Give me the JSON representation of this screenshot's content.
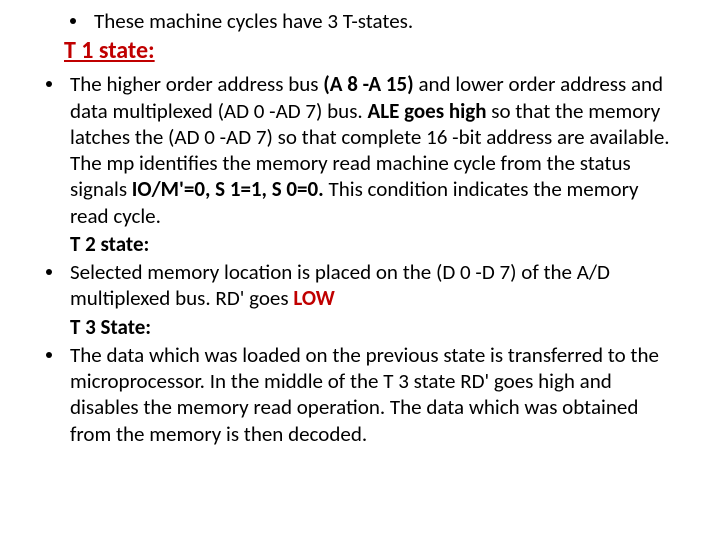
{
  "colors": {
    "text": "#000000",
    "accent": "#c00000",
    "background": "#ffffff"
  },
  "typography": {
    "body_fontsize": 21,
    "heading_fontsize": 24,
    "line_height": 1.25,
    "font_family": "Calibri"
  },
  "top_bullet": {
    "text": "These machine cycles have 3 T-states."
  },
  "t1_heading": "T 1 state:",
  "bullet1": {
    "p1a": "The higher order address bus ",
    "p1b": "(A 8 -A 15)",
    "p1c": " and lower order address and data multiplexed (AD 0 -AD 7) bus. ",
    "p1d": "ALE goes high",
    "p1e": " so that the memory latches the (AD 0 -AD 7) so that complete 16 -bit address are available.",
    "p2a": "The mp identifies the memory read machine cycle from the status signals ",
    "p2b": "IO/M'=0, S 1=1, S 0=0.",
    "p2c": " This condition indicates the memory read cycle.",
    "t2": "T 2 state:"
  },
  "bullet2": {
    "p1a": "Selected memory location is placed on the (D 0 -D 7) of the A/D multiplexed bus. RD' goes ",
    "p1b": "LOW",
    "t3": "T 3 State:"
  },
  "bullet3": {
    "p1": "The data which was loaded on the previous state is transferred to the microprocessor. In the middle of the T 3 state RD' goes high and disables the memory read operation. The data which was obtained from the memory is then decoded."
  }
}
